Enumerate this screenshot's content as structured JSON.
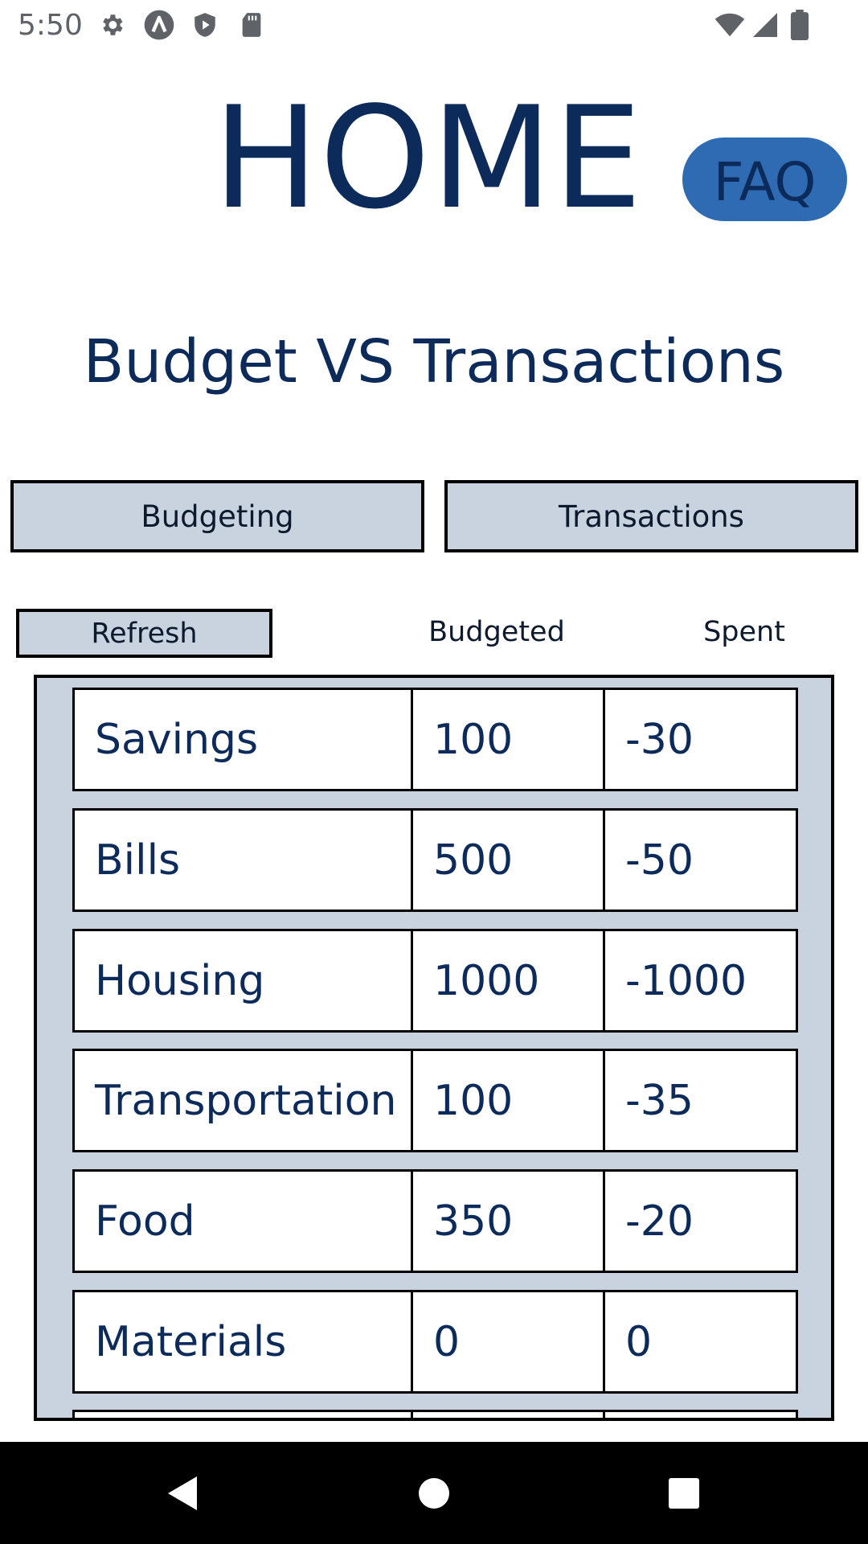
{
  "status_bar": {
    "time": "5:50",
    "left_icons": [
      "gear-icon",
      "a-badge-icon",
      "shield-play-icon",
      "sd-card-icon"
    ],
    "right_icons": [
      "wifi-icon",
      "signal-icon",
      "battery-icon"
    ]
  },
  "header": {
    "title": "HOME",
    "faq_label": "FAQ"
  },
  "page": {
    "title": "Budget VS Transactions"
  },
  "tabs": [
    {
      "label": "Budgeting"
    },
    {
      "label": "Transactions"
    }
  ],
  "controls": {
    "refresh_label": "Refresh"
  },
  "table": {
    "headers": {
      "budgeted": "Budgeted",
      "spent": "Spent"
    },
    "rows": [
      {
        "category": "Savings",
        "budgeted": "100",
        "spent": "-30"
      },
      {
        "category": "Bills",
        "budgeted": "500",
        "spent": "-50"
      },
      {
        "category": "Housing",
        "budgeted": "1000",
        "spent": "-1000"
      },
      {
        "category": "Transportation",
        "budgeted": "100",
        "spent": "-35"
      },
      {
        "category": "Food",
        "budgeted": "350",
        "spent": "-20"
      },
      {
        "category": "Materials",
        "budgeted": "0",
        "spent": "0"
      }
    ]
  },
  "nav_bar": {
    "buttons": [
      "back-icon",
      "home-icon",
      "recents-icon"
    ]
  },
  "colors": {
    "primary_text": "#0c2a5a",
    "faq_background": "#2e6bb3",
    "button_background": "#c8d3df",
    "nav_background": "#000000"
  }
}
